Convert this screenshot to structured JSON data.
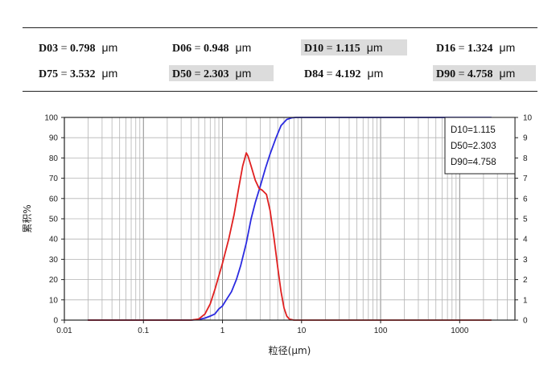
{
  "stats": [
    {
      "label": "D03",
      "value": "0.798",
      "unit": "μm",
      "highlight": false
    },
    {
      "label": "D06",
      "value": "0.948",
      "unit": "μm",
      "highlight": false
    },
    {
      "label": "D10",
      "value": "1.115",
      "unit": "μm",
      "highlight": true
    },
    {
      "label": "D16",
      "value": "1.324",
      "unit": "μm",
      "highlight": false
    },
    {
      "label": "D75",
      "value": "3.532",
      "unit": "μm",
      "highlight": false
    },
    {
      "label": "D50",
      "value": "2.303",
      "unit": "μm",
      "highlight": true
    },
    {
      "label": "D84",
      "value": "4.192",
      "unit": "μm",
      "highlight": false
    },
    {
      "label": "D90",
      "value": "4.758",
      "unit": "μm",
      "highlight": true
    }
  ],
  "chart_data": {
    "type": "line",
    "xscale": "log",
    "xlim": [
      0.01,
      5000
    ],
    "xticks": [
      "0.01",
      "0.1",
      "1",
      "10",
      "100",
      "1000"
    ],
    "ylim": [
      0,
      100
    ],
    "yticks": [
      "0",
      "10",
      "20",
      "30",
      "40",
      "50",
      "60",
      "70",
      "80",
      "90",
      "100"
    ],
    "y2lim": [
      0,
      10
    ],
    "y2ticks": [
      "0",
      "1",
      "2",
      "3",
      "4",
      "5",
      "6",
      "7",
      "8",
      "9",
      "10"
    ],
    "xlabel": "粒径(μm)",
    "ylabel": "累积%",
    "grid": true,
    "annotations": [
      "D10=1.115",
      "D50=2.303",
      "D90=4.758"
    ],
    "series": [
      {
        "color": "#2a2ae0",
        "axis": "left",
        "x": [
          0.02,
          0.4,
          0.5,
          0.6,
          0.7,
          0.8,
          0.9,
          1.0,
          1.115,
          1.3,
          1.5,
          1.7,
          2.0,
          2.303,
          2.6,
          3.0,
          3.5,
          4.0,
          4.758,
          5.5,
          6.5,
          7.5,
          8.5,
          10,
          100,
          2500
        ],
        "y": [
          0,
          0,
          0.3,
          1,
          2,
          3,
          5.5,
          7,
          10,
          14,
          20,
          27,
          38,
          50,
          58,
          66,
          75,
          82,
          90,
          96,
          99,
          99.8,
          100,
          100,
          100,
          100
        ]
      },
      {
        "color": "#e02020",
        "axis": "right",
        "x": [
          0.02,
          0.4,
          0.5,
          0.6,
          0.7,
          0.8,
          1.0,
          1.2,
          1.4,
          1.6,
          1.8,
          2.0,
          2.1,
          2.3,
          2.6,
          2.9,
          3.2,
          3.6,
          4.0,
          4.5,
          5.0,
          5.5,
          6.0,
          6.5,
          7.0,
          8.0,
          10,
          100,
          2500
        ],
        "y": [
          0,
          0,
          0.05,
          0.3,
          0.8,
          1.5,
          2.8,
          4.0,
          5.2,
          6.5,
          7.6,
          8.25,
          8.1,
          7.6,
          6.9,
          6.5,
          6.4,
          6.2,
          5.4,
          4.0,
          2.6,
          1.4,
          0.6,
          0.2,
          0.05,
          0,
          0,
          0,
          0
        ]
      }
    ]
  }
}
